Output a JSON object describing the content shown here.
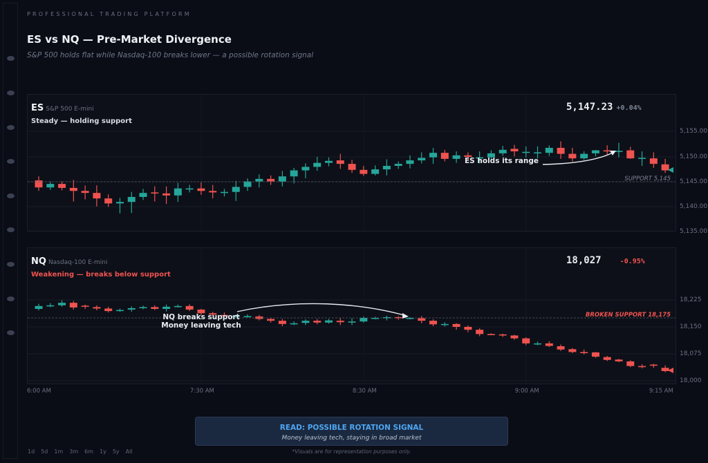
{
  "header": {
    "kicker": "PROFESSIONAL TRADING PLATFORM",
    "title": "ES vs NQ — Pre-Market Divergence",
    "subtitle": "S&P 500 holds flat while Nasdaq-100 breaks lower — a possible rotation signal"
  },
  "colors": {
    "up": "#26a69a",
    "down": "#ef5350",
    "accent": "#4ea6f2"
  },
  "es": {
    "symbol": "ES",
    "name": "S&P 500 E-mini",
    "status": "Steady — holding support",
    "status_color": "#d6dae2",
    "price": "5,147.23",
    "change": "+0.04%",
    "change_color": "#7c8494",
    "annotation": "ES holds its range",
    "support_label": "SUPPORT 5,145",
    "y_ticks": [
      "5,155.00",
      "5,150.00",
      "5,145.00",
      "5,140.00",
      "5,135.00"
    ]
  },
  "nq": {
    "symbol": "NQ",
    "name": "Nasdaq-100 E-mini",
    "status": "Weakening — breaks below support",
    "status_color": "#ef5350",
    "price": "18,027",
    "change": "-0.95%",
    "change_color": "#ef5350",
    "annotation_line1": "NQ breaks support",
    "annotation_line2": "Money leaving tech",
    "support_label": "BROKEN SUPPORT 18,175",
    "y_ticks": [
      "18,225",
      "18,150",
      "18,075",
      "18,000"
    ]
  },
  "x_ticks": [
    {
      "label": "6:00 AM",
      "index": 0
    },
    {
      "label": "7:30 AM",
      "index": 14
    },
    {
      "label": "8:30 AM",
      "index": 28
    },
    {
      "label": "9:00 AM",
      "index": 42
    },
    {
      "label": "9:15 AM",
      "index": 55
    }
  ],
  "ranges": [
    "1d",
    "5d",
    "1m",
    "3m",
    "6m",
    "1y",
    "5y",
    "All"
  ],
  "signal": {
    "title": "READ: POSSIBLE ROTATION SIGNAL",
    "subtitle": "Money leaving tech, staying in broad market"
  },
  "disclaimer": "*Visuals are for representation purposes only.",
  "chart_data": [
    {
      "type": "candlestick",
      "title": "ES S&P 500 E-mini",
      "ylim": [
        5135,
        5160
      ],
      "support": 5145,
      "ohlc": [
        [
          5145.2,
          5146.0,
          5143.1,
          5143.8
        ],
        [
          5143.8,
          5145.0,
          5143.3,
          5144.5
        ],
        [
          5144.5,
          5145.0,
          5143.2,
          5143.7
        ],
        [
          5143.7,
          5145.3,
          5141.0,
          5143.1
        ],
        [
          5143.1,
          5144.2,
          5141.4,
          5142.7
        ],
        [
          5142.7,
          5144.2,
          5140.0,
          5141.6
        ],
        [
          5141.6,
          5142.4,
          5139.9,
          5140.6
        ],
        [
          5140.6,
          5141.7,
          5138.6,
          5140.9
        ],
        [
          5140.9,
          5142.9,
          5138.7,
          5141.9
        ],
        [
          5141.9,
          5143.5,
          5141.3,
          5142.7
        ],
        [
          5142.8,
          5144.0,
          5141.0,
          5142.7
        ],
        [
          5142.6,
          5144.0,
          5140.5,
          5142.2
        ],
        [
          5142.2,
          5144.7,
          5140.9,
          5143.6
        ],
        [
          5143.5,
          5144.3,
          5142.8,
          5143.6
        ],
        [
          5143.6,
          5144.8,
          5142.3,
          5143.1
        ],
        [
          5143.1,
          5144.3,
          5141.6,
          5142.8
        ],
        [
          5142.8,
          5143.5,
          5142.0,
          5142.9
        ],
        [
          5142.9,
          5145.1,
          5141.1,
          5143.9
        ],
        [
          5143.9,
          5145.6,
          5143.1,
          5145.0
        ],
        [
          5145.0,
          5146.4,
          5143.8,
          5145.5
        ],
        [
          5145.5,
          5146.2,
          5144.3,
          5145.0
        ],
        [
          5145.0,
          5147.1,
          5144.0,
          5146.0
        ],
        [
          5146.0,
          5147.7,
          5144.6,
          5147.2
        ],
        [
          5147.2,
          5148.6,
          5145.6,
          5147.9
        ],
        [
          5147.9,
          5149.9,
          5147.1,
          5148.7
        ],
        [
          5148.7,
          5149.8,
          5148.0,
          5149.1
        ],
        [
          5149.2,
          5150.5,
          5147.5,
          5148.5
        ],
        [
          5148.5,
          5149.3,
          5146.7,
          5147.3
        ],
        [
          5147.3,
          5148.1,
          5146.1,
          5146.5
        ],
        [
          5146.5,
          5148.2,
          5146.2,
          5147.4
        ],
        [
          5147.4,
          5149.4,
          5146.2,
          5148.1
        ],
        [
          5148.1,
          5149.0,
          5147.5,
          5148.5
        ],
        [
          5148.5,
          5150.2,
          5147.6,
          5149.2
        ],
        [
          5149.2,
          5150.8,
          5148.6,
          5149.7
        ],
        [
          5149.8,
          5151.7,
          5148.5,
          5150.7
        ],
        [
          5150.7,
          5151.3,
          5149.0,
          5149.5
        ],
        [
          5149.5,
          5151.0,
          5148.7,
          5150.2
        ],
        [
          5150.2,
          5150.8,
          5149.3,
          5149.9
        ],
        [
          5149.7,
          5151.0,
          5148.6,
          5149.8
        ],
        [
          5149.8,
          5151.2,
          5149.3,
          5150.6
        ],
        [
          5150.6,
          5152.1,
          5150.1,
          5151.3
        ],
        [
          5151.5,
          5152.3,
          5150.0,
          5151.0
        ],
        [
          5150.9,
          5152.0,
          5149.8,
          5150.9
        ],
        [
          5150.8,
          5152.0,
          5149.6,
          5150.8
        ],
        [
          5150.7,
          5152.2,
          5150.1,
          5151.7
        ],
        [
          5151.7,
          5153.0,
          5149.5,
          5150.5
        ],
        [
          5150.5,
          5151.7,
          5149.0,
          5149.6
        ],
        [
          5149.6,
          5151.0,
          5149.3,
          5150.5
        ],
        [
          5150.6,
          5151.3,
          5150.0,
          5151.2
        ],
        [
          5151.2,
          5152.2,
          5150.4,
          5151.1
        ],
        [
          5151.0,
          5152.7,
          5149.8,
          5151.1
        ],
        [
          5151.2,
          5151.9,
          5149.5,
          5149.6
        ],
        [
          5149.6,
          5151.0,
          5148.1,
          5149.7
        ],
        [
          5149.6,
          5150.8,
          5147.7,
          5148.5
        ],
        [
          5148.4,
          5149.5,
          5146.7,
          5147.2
        ]
      ]
    },
    {
      "type": "candlestick",
      "title": "NQ Nasdaq-100 E-mini",
      "ylim": [
        17995,
        18315
      ],
      "support": 18175,
      "ohlc": [
        [
          18200,
          18214,
          18196,
          18208
        ],
        [
          18209,
          18216,
          18205,
          18210
        ],
        [
          18210,
          18224,
          18206,
          18217
        ],
        [
          18217,
          18222,
          18198,
          18204
        ],
        [
          18209,
          18212,
          18200,
          18207
        ],
        [
          18205,
          18210,
          18196,
          18201
        ],
        [
          18201,
          18206,
          18190,
          18194
        ],
        [
          18196,
          18201,
          18192,
          18197
        ],
        [
          18198,
          18207,
          18192,
          18202
        ],
        [
          18203,
          18209,
          18199,
          18205
        ],
        [
          18205,
          18210,
          18197,
          18200
        ],
        [
          18200,
          18212,
          18193,
          18206
        ],
        [
          18207,
          18212,
          18204,
          18208
        ],
        [
          18208,
          18213,
          18194,
          18198
        ],
        [
          18198,
          18200,
          18183,
          18188
        ],
        [
          18188,
          18192,
          18180,
          18184
        ],
        [
          18183,
          18190,
          18178,
          18181
        ],
        [
          18180,
          18184,
          18177,
          18181
        ],
        [
          18179,
          18185,
          18176,
          18180
        ],
        [
          18179,
          18183,
          18168,
          18172
        ],
        [
          18172,
          18174,
          18162,
          18167
        ],
        [
          18167,
          18172,
          18152,
          18158
        ],
        [
          18159,
          18165,
          18155,
          18160
        ],
        [
          18161,
          18171,
          18155,
          18167
        ],
        [
          18167,
          18172,
          18157,
          18162
        ],
        [
          18162,
          18172,
          18159,
          18168
        ],
        [
          18167,
          18175,
          18155,
          18163
        ],
        [
          18164,
          18174,
          18155,
          18165
        ],
        [
          18165,
          18179,
          18162,
          18175
        ],
        [
          18174,
          18178,
          18171,
          18175
        ],
        [
          18176,
          18181,
          18168,
          18177
        ],
        [
          18177,
          18180,
          18170,
          18174
        ],
        [
          18174,
          18177,
          18171,
          18175
        ],
        [
          18174,
          18180,
          18160,
          18167
        ],
        [
          18167,
          18171,
          18152,
          18157
        ],
        [
          18157,
          18163,
          18151,
          18158
        ],
        [
          18158,
          18160,
          18142,
          18150
        ],
        [
          18150,
          18154,
          18135,
          18142
        ],
        [
          18142,
          18146,
          18124,
          18130
        ],
        [
          18130,
          18132,
          18128,
          18129
        ],
        [
          18129,
          18131,
          18122,
          18126
        ],
        [
          18126,
          18128,
          18114,
          18118
        ],
        [
          18118,
          18121,
          18099,
          18104
        ],
        [
          18103,
          18109,
          18099,
          18104
        ],
        [
          18104,
          18110,
          18094,
          18097
        ],
        [
          18096,
          18101,
          18083,
          18087
        ],
        [
          18088,
          18091,
          18077,
          18080
        ],
        [
          18080,
          18087,
          18073,
          18079
        ],
        [
          18079,
          18080,
          18064,
          18067
        ],
        [
          18066,
          18069,
          18055,
          18058
        ],
        [
          18059,
          18061,
          18052,
          18054
        ],
        [
          18054,
          18057,
          18038,
          18041
        ],
        [
          18041,
          18046,
          18035,
          18040
        ],
        [
          18045,
          18047,
          18036,
          18043
        ],
        [
          18036,
          18043,
          18024,
          18027
        ]
      ]
    }
  ]
}
